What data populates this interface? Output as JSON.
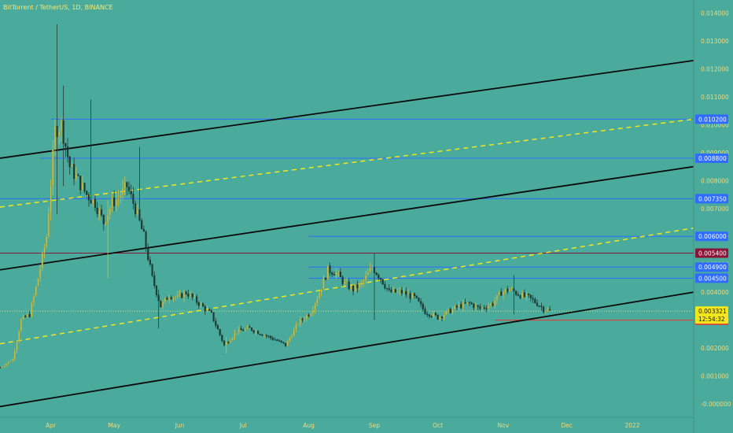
{
  "header": {
    "title": "BitTorrent / TetherUS, 1D, BINANCE"
  },
  "colors": {
    "background": "#4aab9c",
    "candle_up": "#c8c24a",
    "candle_down": "#1f3a35",
    "trend_line": "#0a0a0a",
    "mid_line": "#f2e61c",
    "level_line": "#2f6cff",
    "level_dark": "#8a1536",
    "level_red": "#f0322e",
    "axis_text": "#f1d97a"
  },
  "chart_data": {
    "type": "candlestick",
    "title": "BitTorrent / TetherUS, 1D, BINANCE",
    "y_axis": {
      "ticks": [
        "0.014000",
        "0.013000",
        "0.012000",
        "0.011000",
        "0.010000",
        "0.009000",
        "0.008000",
        "0.007000",
        "0.006000",
        "0.005000",
        "0.004000",
        "0.003000",
        "0.002000",
        "0.001000",
        "-0.000000"
      ],
      "tick_values": [
        0.014,
        0.013,
        0.012,
        0.011,
        0.01,
        0.009,
        0.008,
        0.007,
        0.006,
        0.005,
        0.004,
        0.003,
        0.002,
        0.001,
        0.0
      ],
      "ylim": [
        -0.0002,
        0.0143
      ]
    },
    "x_axis": {
      "ticks": [
        "Apr",
        "May",
        "Jun",
        "Jul",
        "Aug",
        "Sep",
        "Oct",
        "Nov",
        "Dec",
        "2022"
      ],
      "tick_dates": [
        "2021-04-01",
        "2021-05-01",
        "2021-06-01",
        "2021-07-01",
        "2021-08-01",
        "2021-09-01",
        "2021-10-01",
        "2021-11-01",
        "2021-12-01",
        "2022-01-01"
      ],
      "range": [
        "2021-03-08",
        "2022-01-30"
      ]
    },
    "price_levels": [
      {
        "label": "0.010200",
        "value": 0.0102,
        "color": "#2f6cff",
        "from": "2021-04-01"
      },
      {
        "label": "0.008800",
        "value": 0.0088,
        "color": "#2f6cff",
        "from": "2021-03-27"
      },
      {
        "label": "0.007350",
        "value": 0.00735,
        "color": "#2f6cff",
        "from": "2021-03-08"
      },
      {
        "label": "0.006000",
        "value": 0.006,
        "color": "#2f6cff",
        "from": "2021-08-01"
      },
      {
        "label": "0.005400",
        "value": 0.0054,
        "color": "#8a1536",
        "from": "2021-03-08"
      },
      {
        "label": "0.004900",
        "value": 0.0049,
        "color": "#2f6cff",
        "from": "2021-08-01"
      },
      {
        "label": "0.004500",
        "value": 0.0045,
        "color": "#2f6cff",
        "from": "2021-08-01"
      },
      {
        "label": "0.003000",
        "value": 0.003,
        "color": "#f0322e",
        "from": "2021-10-28"
      }
    ],
    "current_price": {
      "label": "0.003321",
      "value": 0.003321,
      "countdown": "12:54:32"
    },
    "channel_lines": [
      {
        "name": "upper",
        "style": "solid",
        "points": [
          [
            "2021-03-08",
            0.0088
          ],
          [
            "2022-01-30",
            0.0123
          ]
        ]
      },
      {
        "name": "upper-mid",
        "style": "dashed",
        "points": [
          [
            "2021-03-08",
            0.00705
          ],
          [
            "2022-01-30",
            0.0102
          ]
        ]
      },
      {
        "name": "middle",
        "style": "solid",
        "points": [
          [
            "2021-03-08",
            0.0048
          ],
          [
            "2022-01-30",
            0.0085
          ]
        ]
      },
      {
        "name": "lower-mid",
        "style": "dashed",
        "points": [
          [
            "2021-03-08",
            0.00215
          ],
          [
            "2022-01-30",
            0.0063
          ]
        ]
      },
      {
        "name": "lower",
        "style": "solid",
        "points": [
          [
            "2021-03-08",
            -0.0001
          ],
          [
            "2022-01-30",
            0.004
          ]
        ]
      }
    ],
    "price_path": [
      [
        "2021-03-08",
        0.0013
      ],
      [
        "2021-03-14",
        0.0016
      ],
      [
        "2021-03-18",
        0.003
      ],
      [
        "2021-03-22",
        0.0032
      ],
      [
        "2021-03-26",
        0.0045
      ],
      [
        "2021-03-30",
        0.006
      ],
      [
        "2021-04-03",
        0.0098
      ],
      [
        "2021-04-06",
        0.01
      ],
      [
        "2021-04-10",
        0.0085
      ],
      [
        "2021-04-14",
        0.008
      ],
      [
        "2021-04-18",
        0.0075
      ],
      [
        "2021-04-22",
        0.0072
      ],
      [
        "2021-04-26",
        0.0065
      ],
      [
        "2021-04-30",
        0.0072
      ],
      [
        "2021-05-03",
        0.0074
      ],
      [
        "2021-05-07",
        0.0078
      ],
      [
        "2021-05-11",
        0.007
      ],
      [
        "2021-05-15",
        0.006
      ],
      [
        "2021-05-19",
        0.0045
      ],
      [
        "2021-05-23",
        0.0035
      ],
      [
        "2021-05-27",
        0.0039
      ],
      [
        "2021-05-31",
        0.0038
      ],
      [
        "2021-06-04",
        0.004
      ],
      [
        "2021-06-10",
        0.0036
      ],
      [
        "2021-06-16",
        0.0032
      ],
      [
        "2021-06-22",
        0.0021
      ],
      [
        "2021-06-28",
        0.0026
      ],
      [
        "2021-07-04",
        0.0027
      ],
      [
        "2021-07-10",
        0.0025
      ],
      [
        "2021-07-16",
        0.0023
      ],
      [
        "2021-07-21",
        0.0021
      ],
      [
        "2021-07-27",
        0.0029
      ],
      [
        "2021-08-02",
        0.0033
      ],
      [
        "2021-08-06",
        0.004
      ],
      [
        "2021-08-10",
        0.0048
      ],
      [
        "2021-08-14",
        0.0047
      ],
      [
        "2021-08-18",
        0.0043
      ],
      [
        "2021-08-22",
        0.0041
      ],
      [
        "2021-08-26",
        0.0043
      ],
      [
        "2021-08-31",
        0.0049
      ],
      [
        "2021-09-04",
        0.0045
      ],
      [
        "2021-09-08",
        0.004
      ],
      [
        "2021-09-14",
        0.004
      ],
      [
        "2021-09-20",
        0.0038
      ],
      [
        "2021-09-25",
        0.0033
      ],
      [
        "2021-10-01",
        0.0031
      ],
      [
        "2021-10-06",
        0.0033
      ],
      [
        "2021-10-11",
        0.0035
      ],
      [
        "2021-10-16",
        0.0036
      ],
      [
        "2021-10-21",
        0.0034
      ],
      [
        "2021-10-27",
        0.0036
      ],
      [
        "2021-10-31",
        0.004
      ],
      [
        "2021-11-04",
        0.0041
      ],
      [
        "2021-11-09",
        0.0039
      ],
      [
        "2021-11-13",
        0.0038
      ],
      [
        "2021-11-17",
        0.0036
      ],
      [
        "2021-11-20",
        0.0034
      ],
      [
        "2021-11-23",
        0.00332
      ]
    ],
    "spikes": [
      {
        "date": "2021-04-04",
        "high": 0.0136,
        "low": 0.0068
      },
      {
        "date": "2021-04-07",
        "high": 0.0114,
        "low": 0.0078
      },
      {
        "date": "2021-04-20",
        "high": 0.0109,
        "low": 0.0072
      },
      {
        "date": "2021-05-13",
        "high": 0.0092,
        "low": 0.0066
      },
      {
        "date": "2021-04-28",
        "high": 0.0073,
        "low": 0.0045
      },
      {
        "date": "2021-05-22",
        "high": 0.0041,
        "low": 0.0027
      },
      {
        "date": "2021-06-23",
        "high": 0.0024,
        "low": 0.0018
      },
      {
        "date": "2021-09-01",
        "high": 0.0054,
        "low": 0.003
      },
      {
        "date": "2021-11-06",
        "high": 0.0046,
        "low": 0.0032
      }
    ]
  }
}
